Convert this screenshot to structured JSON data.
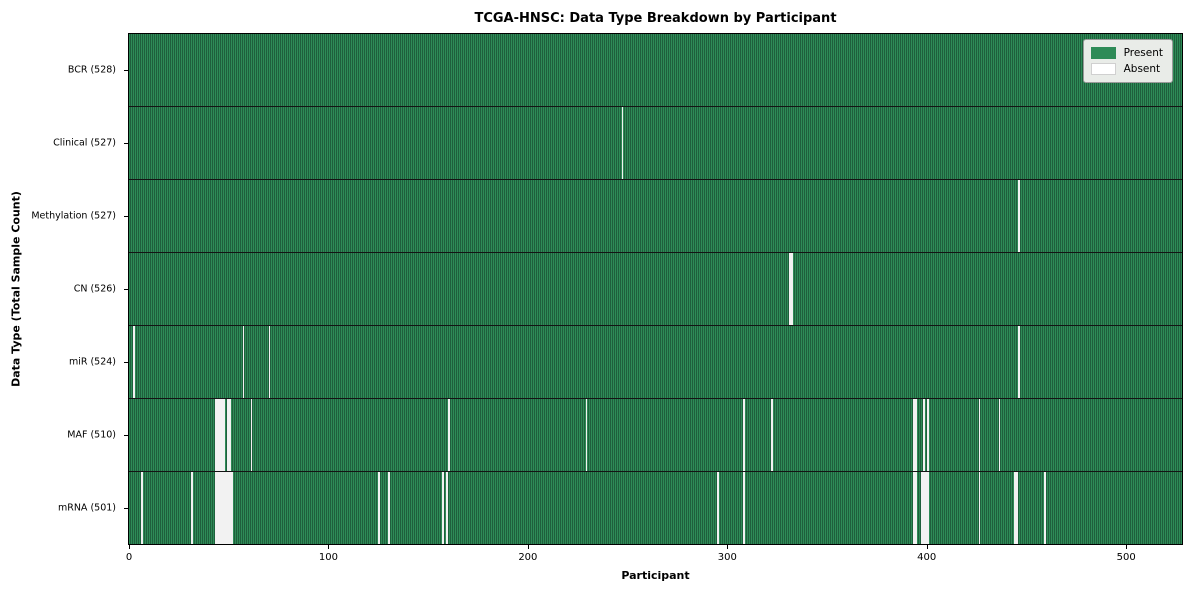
{
  "chart_data": {
    "type": "heatmap",
    "title": "TCGA-HNSC: Data Type Breakdown by Participant",
    "xlabel": "Participant",
    "ylabel": "Data Type (Total Sample Count)",
    "x_ticks": [
      0,
      100,
      200,
      300,
      400,
      500
    ],
    "x_range": [
      0,
      528
    ],
    "n_participants": 528,
    "grid": false,
    "legend": {
      "position": "upper right",
      "present_label": "Present",
      "absent_label": "Absent"
    },
    "colors": {
      "present": "#2e8b57",
      "present_edge": "#1f5f3c",
      "absent": "#f2f2f2",
      "row_divider": "#141414"
    },
    "rows": [
      {
        "label": "BCR (528)",
        "data_type": "BCR",
        "total_present": 528,
        "absent_participants": []
      },
      {
        "label": "Clinical (527)",
        "data_type": "Clinical",
        "total_present": 527,
        "absent_participants": [
          247
        ]
      },
      {
        "label": "Methylation (527)",
        "data_type": "Methylation",
        "total_present": 527,
        "absent_participants": [
          446
        ]
      },
      {
        "label": "CN (526)",
        "data_type": "CN",
        "total_present": 526,
        "absent_participants": [
          331,
          332
        ]
      },
      {
        "label": "miR (524)",
        "data_type": "miR",
        "total_present": 524,
        "absent_participants": [
          2,
          57,
          70,
          446
        ]
      },
      {
        "label": "MAF (510)",
        "data_type": "MAF",
        "total_present": 510,
        "absent_participants": [
          43,
          44,
          45,
          46,
          47,
          49,
          50,
          61,
          160,
          229,
          308,
          322,
          393,
          394,
          398,
          400,
          426,
          436
        ]
      },
      {
        "label": "mRNA (501)",
        "data_type": "mRNA",
        "total_present": 501,
        "absent_participants": [
          6,
          31,
          43,
          44,
          45,
          46,
          47,
          48,
          49,
          50,
          51,
          125,
          130,
          157,
          159,
          295,
          308,
          393,
          394,
          397,
          398,
          399,
          400,
          426,
          444,
          445,
          459
        ]
      }
    ]
  }
}
